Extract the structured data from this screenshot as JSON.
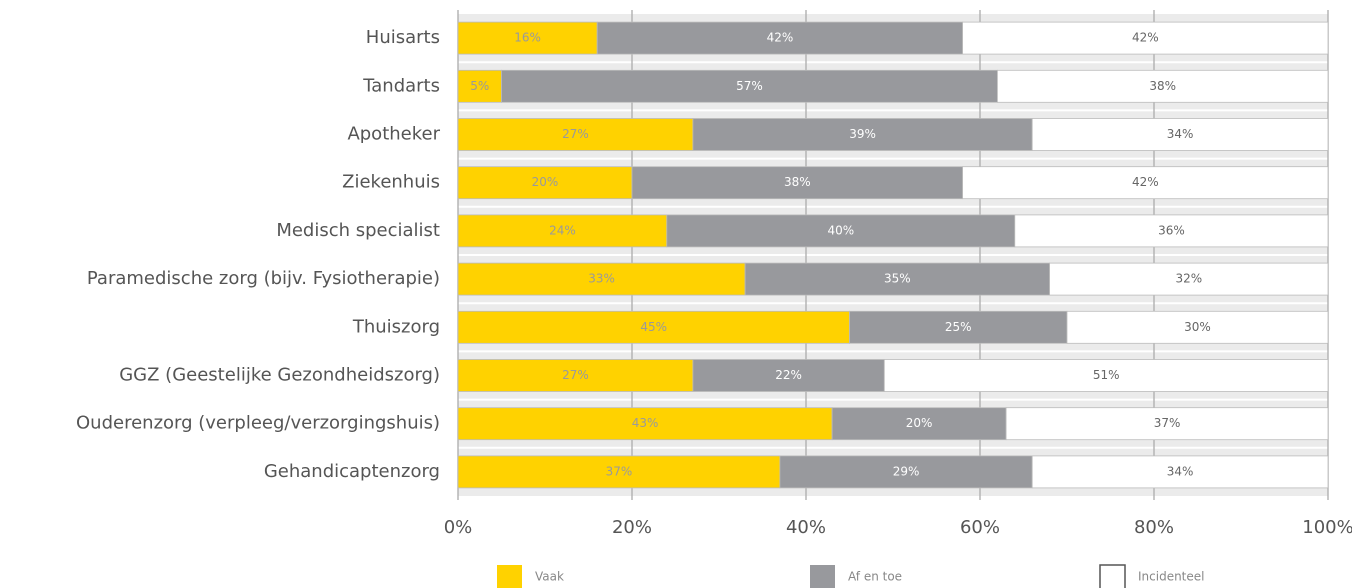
{
  "chart_data": {
    "type": "stacked-barh",
    "categories": [
      "Huisarts",
      "Tandarts",
      "Apotheker",
      "Ziekenhuis",
      "Medisch specialist",
      "Paramedische zorg (bijv. Fysiotherapie)",
      "Thuiszorg",
      "GGZ (Geestelijke Gezondheidszorg)",
      "Ouderenzorg (verpleeg/verzorgingshuis)",
      "Gehandicaptenzorg"
    ],
    "series": [
      {
        "name": "Vaak",
        "color": "#ffd200",
        "label_color": "#9a9a9a",
        "values": [
          16,
          5,
          27,
          20,
          24,
          33,
          45,
          27,
          43,
          37
        ],
        "value_labels": [
          "16%",
          "5%",
          "27%",
          "20%",
          "24%",
          "33%",
          "45%",
          "27%",
          "43%",
          "37%"
        ]
      },
      {
        "name": "Af en toe",
        "color": "#98999d",
        "label_color": "#ffffff",
        "values": [
          42,
          57,
          39,
          38,
          40,
          35,
          25,
          22,
          20,
          29
        ],
        "value_labels": [
          "42%",
          "57%",
          "39%",
          "38%",
          "40%",
          "35%",
          "25%",
          "22%",
          "20%",
          "29%"
        ]
      },
      {
        "name": "Incidenteel",
        "color": "#ffffff",
        "label_color": "#666666",
        "values": [
          42,
          38,
          34,
          42,
          36,
          32,
          30,
          51,
          37,
          34
        ],
        "value_labels": [
          "42%",
          "38%",
          "34%",
          "42%",
          "36%",
          "32%",
          "30%",
          "51%",
          "37%",
          "34%"
        ]
      }
    ],
    "xlim": [
      0,
      100
    ],
    "xticks": [
      {
        "value": 0,
        "label": "0%"
      },
      {
        "value": 20,
        "label": "20%"
      },
      {
        "value": 40,
        "label": "40%"
      },
      {
        "value": 60,
        "label": "60%"
      },
      {
        "value": 80,
        "label": "80%"
      },
      {
        "value": 100,
        "label": "100%"
      }
    ],
    "grid": true,
    "legend": "bottom"
  }
}
